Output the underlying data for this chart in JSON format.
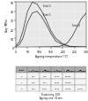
{
  "xlabel": "Ageing temperature (°C)",
  "ylabel": "Δσy (MPa)",
  "xlim": [
    0,
    300
  ],
  "ylim": [
    0,
    50
  ],
  "yticks": [
    0,
    10,
    20,
    30,
    40,
    50
  ],
  "xticks": [
    0,
    50,
    100,
    150,
    200,
    250,
    300
  ],
  "steel2_label": "Steel 2",
  "steel1_label": "Steel 1",
  "steel3_label": "Steel 3",
  "steel2_x": [
    0,
    15,
    30,
    50,
    70,
    90,
    110,
    130,
    150,
    170,
    200,
    230,
    260,
    300
  ],
  "steel2_y": [
    2,
    6,
    18,
    40,
    50,
    48,
    40,
    30,
    18,
    10,
    4,
    1,
    0.5,
    0.3
  ],
  "steel1_x": [
    0,
    15,
    30,
    50,
    70,
    90,
    110,
    130,
    150,
    170,
    200,
    230,
    260,
    300
  ],
  "steel1_y": [
    1,
    3,
    10,
    28,
    38,
    40,
    34,
    25,
    15,
    7,
    3,
    1,
    0.5,
    0.3
  ],
  "steel3_x": [
    0,
    50,
    100,
    150,
    180,
    200,
    220,
    240,
    260,
    280,
    300
  ],
  "steel3_y": [
    0,
    0,
    0.3,
    0.5,
    1,
    2,
    5,
    12,
    22,
    32,
    38
  ],
  "table_rows": [
    [
      "1",
      "0.07",
      "0.28",
      "0.010",
      "0.0056",
      ""
    ],
    [
      "2",
      "0.06",
      "0.31",
      "0.009",
      "0.0058",
      ""
    ],
    [
      "3",
      "0.10",
      "0.060",
      "0.010",
      "0.0056",
      "0.0057"
    ]
  ],
  "col_headers": [
    "Steel",
    "C\n% by mass",
    "Mn\n% by mass",
    "P\n% by mass",
    "NO\n% by mass",
    "Nb\n% by mass"
  ],
  "footnote1": "Prestaining: 10%",
  "footnote2": "Ageing time: 30 min",
  "line_color": "#333333",
  "bg_color": "#e8e8e8",
  "header_bg": "#aaaaaa",
  "row_bg": "#f5f5f5"
}
